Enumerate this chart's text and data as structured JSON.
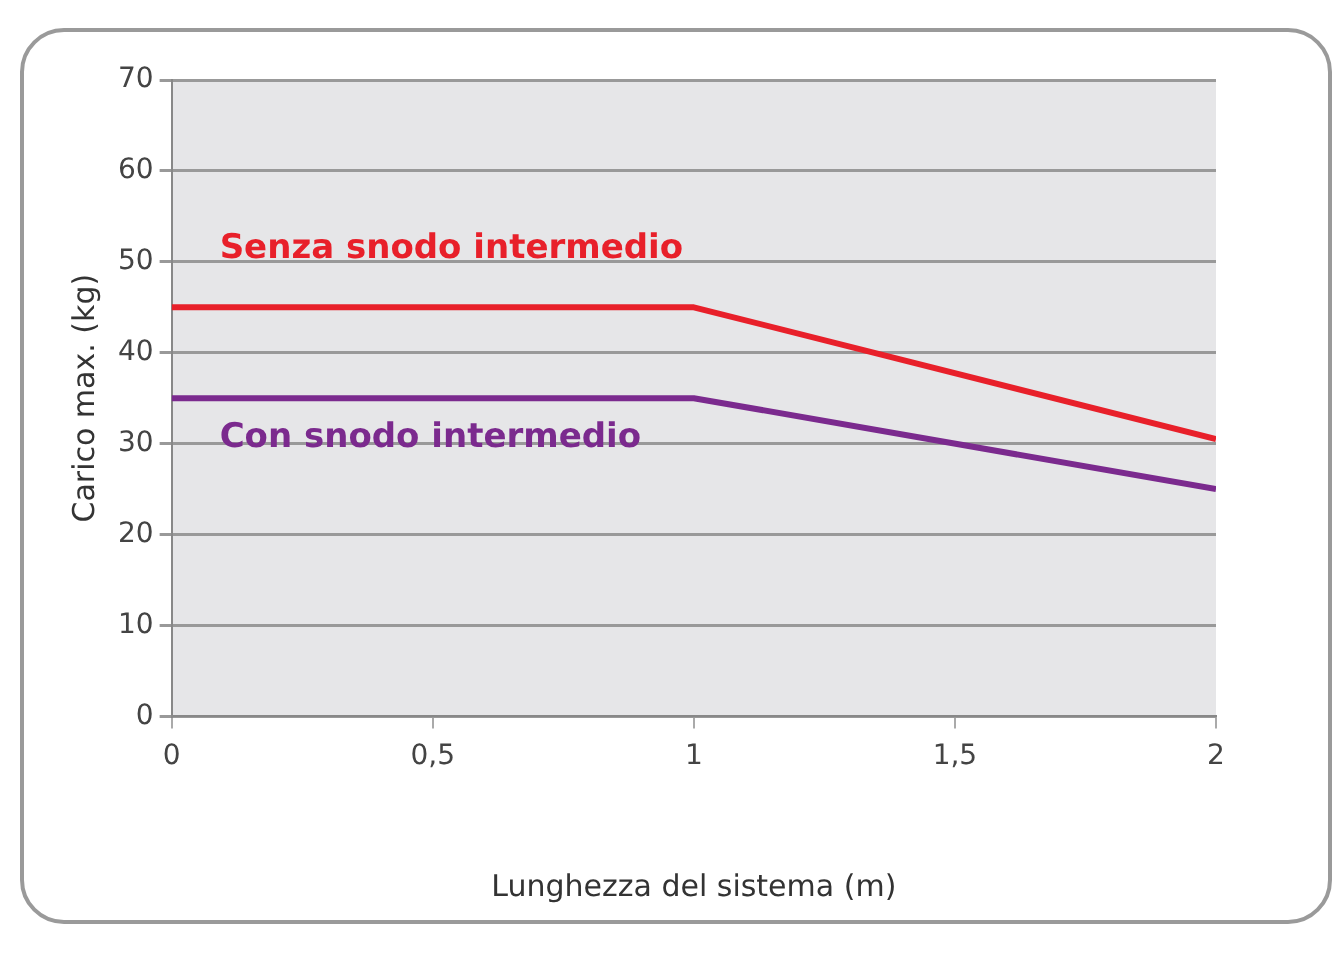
{
  "chart_data": {
    "type": "line",
    "xlabel": "Lunghezza del sistema (m)",
    "ylabel": "Carico max. (kg)",
    "x": [
      0,
      1,
      2
    ],
    "series": [
      {
        "name": "Senza snodo intermedio",
        "color": "#e8202a",
        "values": [
          45,
          45,
          30.5
        ]
      },
      {
        "name": "Con snodo intermedio",
        "color": "#7b2a8e",
        "values": [
          35,
          35,
          25
        ]
      }
    ],
    "xlim": [
      0,
      2
    ],
    "xticks": [
      0,
      {
        "value": 0.5,
        "label": "0,5"
      },
      1,
      {
        "value": 1.5,
        "label": "1,5"
      },
      2
    ],
    "ylim": [
      0,
      70
    ],
    "yticks": [
      0,
      10,
      20,
      30,
      40,
      50,
      60,
      70
    ],
    "grid": "y",
    "marker": "none",
    "line_style": "solid",
    "legend": false
  }
}
